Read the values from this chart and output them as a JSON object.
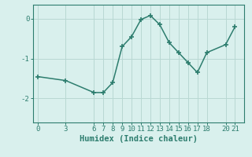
{
  "x": [
    0,
    3,
    6,
    7,
    8,
    9,
    10,
    11,
    12,
    13,
    14,
    15,
    16,
    17,
    18,
    20,
    21
  ],
  "y": [
    -1.45,
    -1.55,
    -1.85,
    -1.85,
    -1.6,
    -0.7,
    -0.45,
    -0.02,
    0.08,
    -0.15,
    -0.6,
    -0.85,
    -1.1,
    -1.35,
    -0.85,
    -0.65,
    -0.2
  ],
  "xlabel": "Humidex (Indice chaleur)",
  "ylabel": "",
  "xlim": [
    -0.5,
    22
  ],
  "ylim": [
    -2.6,
    0.35
  ],
  "yticks": [
    0,
    -1,
    -2
  ],
  "ytick_labels": [
    "0",
    "-1",
    "-2"
  ],
  "xticks": [
    0,
    3,
    6,
    7,
    8,
    9,
    10,
    11,
    12,
    13,
    14,
    15,
    16,
    17,
    18,
    20,
    21
  ],
  "line_color": "#2d7d6e",
  "marker": "+",
  "marker_size": 5,
  "bg_color": "#d9f0ed",
  "grid_color": "#b8d8d3",
  "tick_label_fontsize": 6.5,
  "xlabel_fontsize": 7.5,
  "linewidth": 1.1,
  "marker_linewidth": 1.2
}
